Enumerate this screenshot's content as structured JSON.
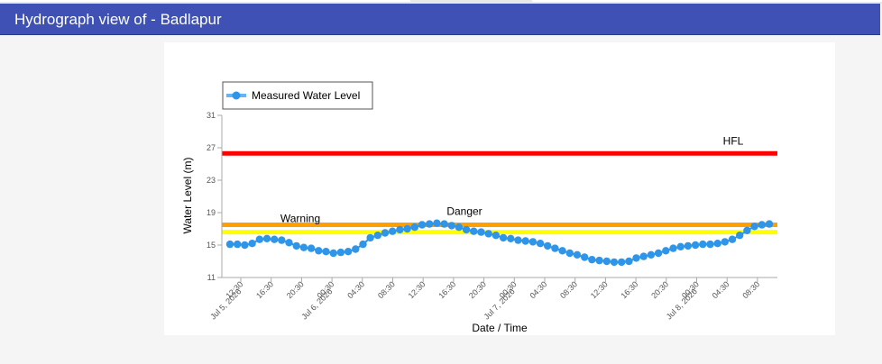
{
  "header": {
    "title": "Hydrograph view of - Badlapur"
  },
  "colors": {
    "header_bg": "#3f51b5",
    "series": "#2e95e8",
    "legend_line": "#64b5f6",
    "hfl": "#ff0000",
    "danger": "#ffa000",
    "warning": "#ffff00"
  },
  "chart_data": {
    "type": "line",
    "xlabel": "Date / Time",
    "ylabel": "Water Level (m)",
    "ylim": [
      11,
      31
    ],
    "yticks": [
      11,
      15,
      19,
      23,
      27,
      31
    ],
    "legend": {
      "label": "Measured Water Level",
      "position": "top-left"
    },
    "x_tick_labels": [
      "12:30",
      "Jul 5, 2026",
      "16:30",
      "20:30",
      "00:30",
      "Jul 6, 2026",
      "04:30",
      "08:30",
      "12:30",
      "16:30",
      "20:30",
      "00:30",
      "Jul 7, 2026",
      "04:30",
      "08:30",
      "12:30",
      "16:30",
      "20:30",
      "00:30",
      "Jul 8, 2026",
      "04:30",
      "08:30"
    ],
    "reference_lines": [
      {
        "name": "HFL",
        "value": 26.3
      },
      {
        "name": "Danger",
        "value": 17.5
      },
      {
        "name": "Warning",
        "value": 16.6
      }
    ],
    "series": [
      {
        "name": "Measured Water Level",
        "values": [
          15.1,
          15.1,
          15.0,
          15.2,
          15.7,
          15.8,
          15.7,
          15.6,
          15.3,
          14.9,
          14.7,
          14.6,
          14.3,
          14.2,
          14.0,
          14.1,
          14.2,
          14.5,
          15.1,
          15.9,
          16.2,
          16.5,
          16.7,
          16.9,
          17.0,
          17.2,
          17.5,
          17.6,
          17.7,
          17.6,
          17.4,
          17.2,
          16.9,
          16.7,
          16.6,
          16.4,
          16.2,
          15.9,
          15.8,
          15.6,
          15.5,
          15.4,
          15.2,
          14.9,
          14.6,
          14.3,
          14.0,
          13.8,
          13.5,
          13.2,
          13.1,
          13.0,
          12.9,
          12.9,
          13.0,
          13.4,
          13.6,
          13.8,
          14.0,
          14.3,
          14.6,
          14.8,
          14.9,
          15.0,
          15.1,
          15.1,
          15.2,
          15.4,
          15.7,
          16.2,
          16.8,
          17.3,
          17.5,
          17.6
        ]
      }
    ]
  }
}
